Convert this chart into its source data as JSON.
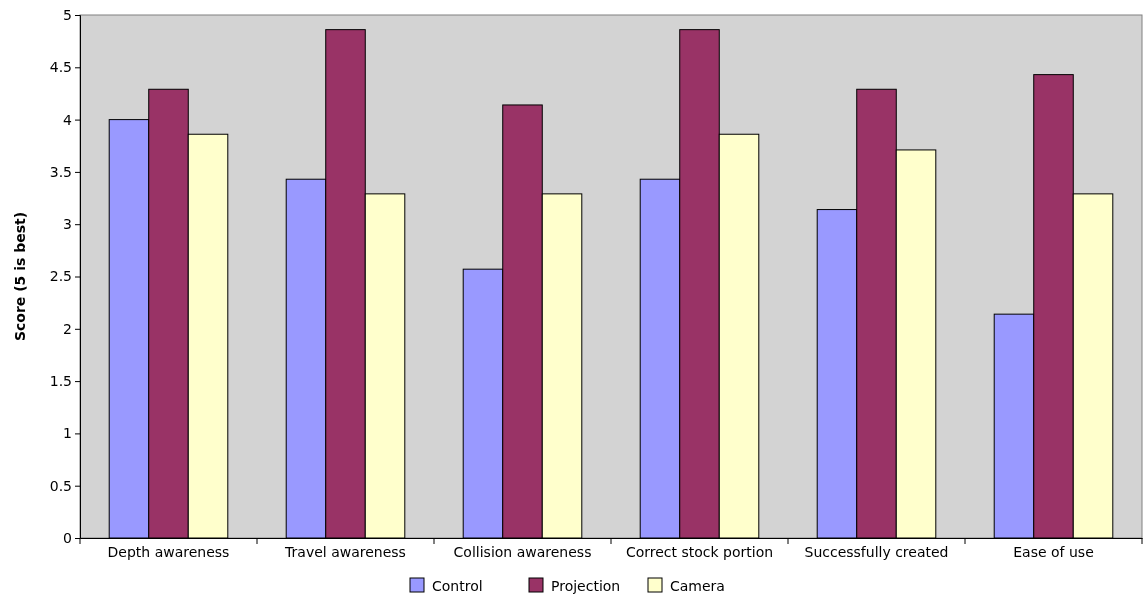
{
  "chart_data": {
    "type": "bar",
    "ylabel": "Score (5 is best)",
    "categories": [
      "Depth awareness",
      "Travel awareness",
      "Collision awareness",
      "Correct stock portion",
      "Successfully created",
      "Ease of use"
    ],
    "series": [
      {
        "name": "Control",
        "color": "#9999ff",
        "values": [
          4.0,
          3.43,
          2.57,
          3.43,
          3.14,
          2.14
        ]
      },
      {
        "name": "Projection",
        "color": "#993366",
        "values": [
          4.29,
          4.86,
          4.14,
          4.86,
          4.29,
          4.43
        ]
      },
      {
        "name": "Camera",
        "color": "#ffffcc",
        "values": [
          3.86,
          3.29,
          3.29,
          3.86,
          3.71,
          3.29
        ]
      }
    ],
    "ylim": [
      0,
      5
    ],
    "yticks": [
      0,
      0.5,
      1,
      1.5,
      2,
      2.5,
      3,
      3.5,
      4,
      4.5,
      5
    ],
    "grid": false,
    "legend": "bottom"
  }
}
